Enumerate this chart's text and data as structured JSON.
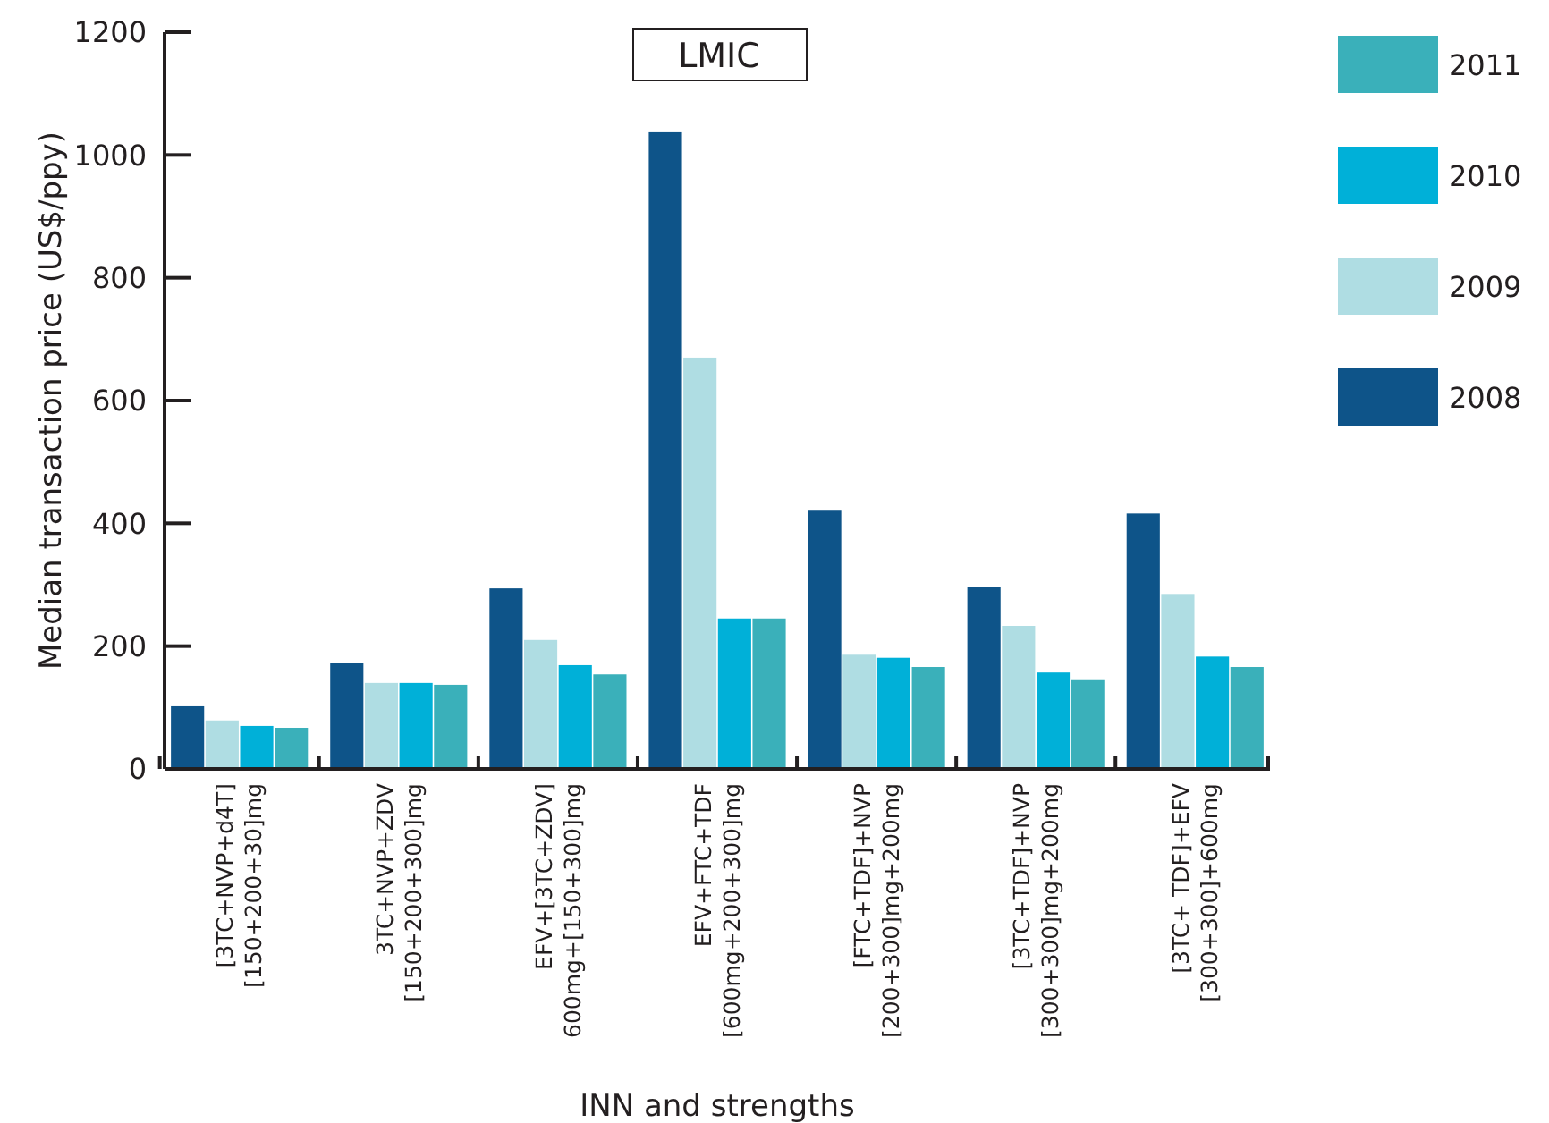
{
  "chart_data": {
    "type": "bar",
    "title": "LMIC",
    "xlabel": "INN and strengths",
    "ylabel": "Median transaction price (US$/ppy)",
    "categories": [
      "[3TC+NVP+d4T]\n[150+200+30]mg",
      "3TC+NVP+ZDV\n[150+200+300]mg",
      "EFV+[3TC+ZDV]\n600mg+[150+300]mg",
      "EFV+FTC+TDF\n[600mg+200+300]mg",
      "[FTC+TDF]+NVP\n[200+300]mg+200mg",
      "[3TC+TDF]+NVP\n[300+300]mg+200mg",
      "[3TC+ TDF]+EFV\n[300+300]+600mg"
    ],
    "series": [
      {
        "name": "2008",
        "color": "#0e5489",
        "values": [
          102,
          172,
          294,
          1037,
          422,
          297,
          416
        ]
      },
      {
        "name": "2009",
        "color": "#afdde3",
        "values": [
          79,
          140,
          210,
          670,
          186,
          233,
          285
        ]
      },
      {
        "name": "2010",
        "color": "#00b0d8",
        "values": [
          70,
          140,
          169,
          245,
          181,
          157,
          183
        ]
      },
      {
        "name": "2011",
        "color": "#3ab0ba",
        "values": [
          67,
          137,
          154,
          245,
          166,
          146,
          166
        ]
      }
    ],
    "ylim": [
      0,
      1200
    ],
    "yticks": [
      0,
      200,
      400,
      600,
      800,
      1000,
      1200
    ],
    "grid": false,
    "legend": "top right"
  }
}
